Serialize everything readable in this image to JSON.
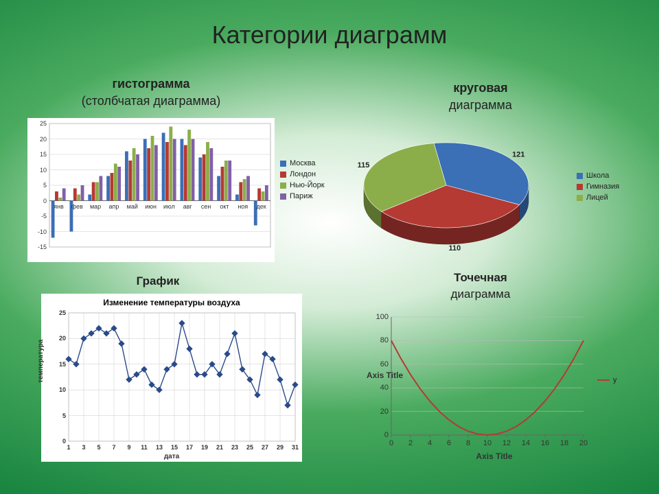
{
  "title": "Категории диаграмм",
  "histogram": {
    "title": "гистограмма",
    "subtitle": "(столбчатая диаграмма)",
    "type": "bar",
    "categories": [
      "янв",
      "фев",
      "мар",
      "апр",
      "май",
      "июн",
      "июл",
      "авг",
      "сен",
      "окт",
      "ноя",
      "дек"
    ],
    "series": [
      {
        "name": "Москва",
        "color": "#3b6fb6",
        "values": [
          -12,
          -10,
          2,
          8,
          16,
          20,
          22,
          20,
          14,
          8,
          2,
          -8
        ]
      },
      {
        "name": "Лондон",
        "color": "#b43a33",
        "values": [
          3,
          4,
          6,
          9,
          13,
          17,
          19,
          18,
          15,
          11,
          6,
          4
        ]
      },
      {
        "name": "Нью-Йорк",
        "color": "#8cae4a",
        "values": [
          1,
          2,
          6,
          12,
          17,
          21,
          24,
          23,
          19,
          13,
          7,
          3
        ]
      },
      {
        "name": "Париж",
        "color": "#8160a6",
        "values": [
          4,
          5,
          8,
          11,
          15,
          18,
          20,
          20,
          17,
          13,
          8,
          5
        ]
      }
    ],
    "ylim": [
      -15,
      25
    ],
    "ytick_step": 5,
    "background": "#ffffff",
    "grid_color": "#c9c9c9",
    "bar_group_gap": 0.2,
    "label_fontsize": 9
  },
  "pie": {
    "title": "круговая",
    "subtitle": "диаграмма",
    "type": "pie3d",
    "slices": [
      {
        "name": "Школа",
        "value": 121,
        "color": "#3b6fb6",
        "label": "121"
      },
      {
        "name": "Гимназия",
        "value": 110,
        "color": "#b43a33",
        "label": "110"
      },
      {
        "name": "Лицей",
        "value": 115,
        "color": "#8cae4a",
        "label": "115"
      }
    ],
    "label_fontsize": 11,
    "label_color": "#222"
  },
  "line": {
    "title": "График",
    "chart_title": "Изменение температуры воздуха",
    "type": "line_markers",
    "xlabel": "дата",
    "ylabel": "температура",
    "x": [
      1,
      2,
      3,
      4,
      5,
      6,
      7,
      8,
      9,
      10,
      11,
      12,
      13,
      14,
      15,
      16,
      17,
      18,
      19,
      20,
      21,
      22,
      23,
      24,
      25,
      26,
      27,
      28,
      29,
      30,
      31
    ],
    "y": [
      16,
      15,
      20,
      21,
      22,
      21,
      22,
      19,
      12,
      13,
      14,
      11,
      10,
      14,
      15,
      23,
      18,
      13,
      13,
      15,
      13,
      17,
      21,
      14,
      12,
      9,
      17,
      16,
      12,
      7,
      11
    ],
    "marker_color": "#2a4a8a",
    "line_color": "#2a4a8a",
    "marker": "diamond",
    "xlim": [
      1,
      31
    ],
    "ylim": [
      0,
      25
    ],
    "ytick_step": 5,
    "xtick_step": 2,
    "background": "#ffffff",
    "grid_color": "#c9c9c9",
    "title_fontsize": 12,
    "label_fontsize": 10
  },
  "scatter": {
    "title": "Точечная",
    "subtitle": "диаграмма",
    "type": "scatter_line",
    "legend_label": "y",
    "x": [
      0,
      1,
      2,
      3,
      4,
      5,
      6,
      7,
      8,
      9,
      10,
      11,
      12,
      13,
      14,
      15,
      16,
      17,
      18,
      19,
      20
    ],
    "y": [
      80,
      64.8,
      51.2,
      39.2,
      28.8,
      20,
      12.8,
      7.2,
      3.2,
      0.8,
      0,
      0.8,
      3.2,
      7.2,
      12.8,
      20,
      28.8,
      39.2,
      51.2,
      64.8,
      80
    ],
    "line_color": "#b43a33",
    "xlim": [
      0,
      20
    ],
    "ylim": [
      0,
      100
    ],
    "ytick_step": 20,
    "xtick_step": 2,
    "ylabel": "Axis Title",
    "xlabel": "Axis Title",
    "background_color": "transparent",
    "grid_color": "#b8b8b8",
    "label_fontsize": 11
  }
}
